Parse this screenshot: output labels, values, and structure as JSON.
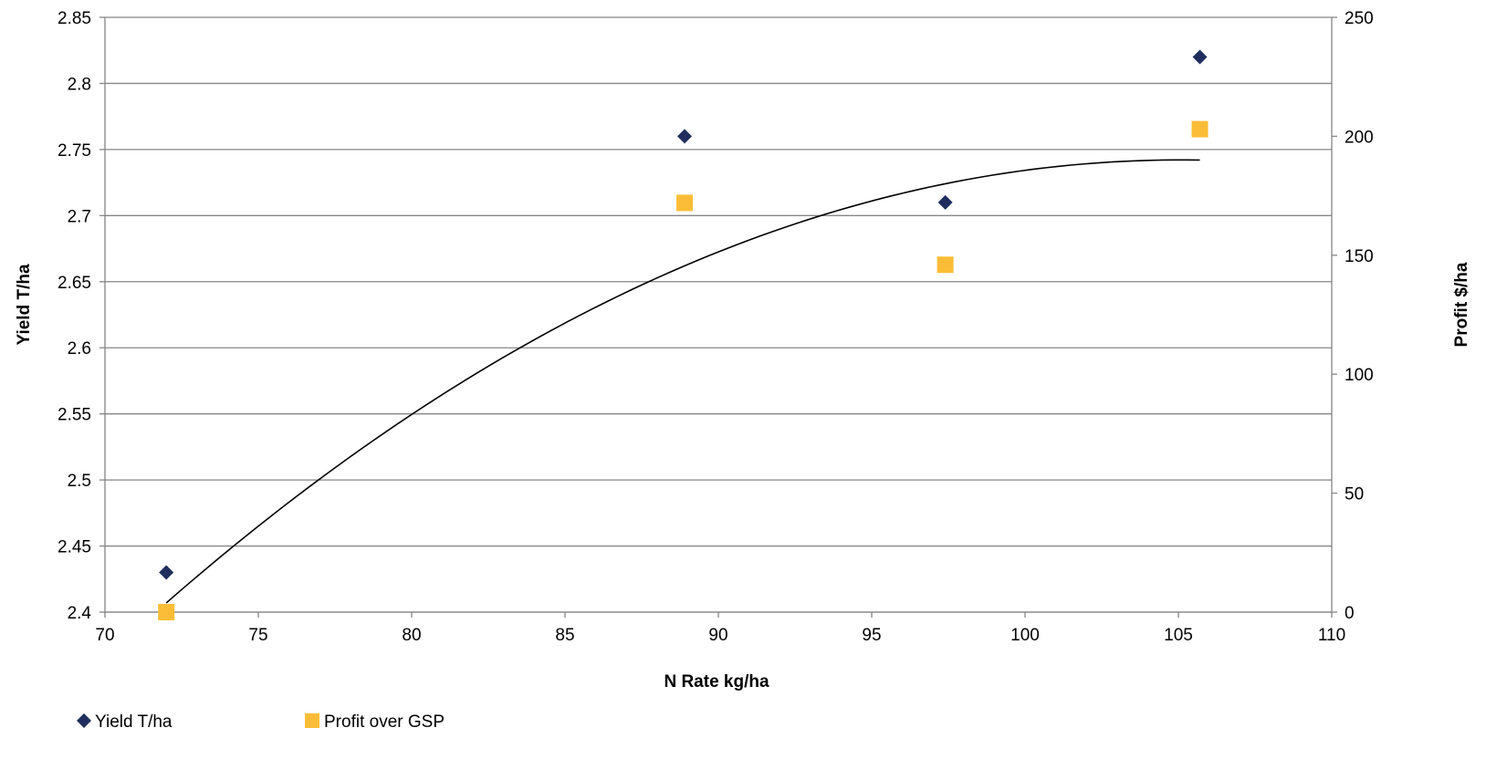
{
  "chart_data": {
    "type": "scatter",
    "x_axis": {
      "label": "N Rate kg/ha",
      "range": [
        70,
        110
      ],
      "ticks": [
        "70",
        "75",
        "80",
        "85",
        "90",
        "95",
        "100",
        "105",
        "110"
      ]
    },
    "y_axis_left": {
      "label": "Yield T/ha",
      "range": [
        2.4,
        2.85
      ],
      "ticks": [
        "2.4",
        "2.45",
        "2.5",
        "2.55",
        "2.6",
        "2.65",
        "2.7",
        "2.75",
        "2.8",
        "2.85"
      ]
    },
    "y_axis_right": {
      "label": "Profit $/ha",
      "range": [
        0,
        250
      ],
      "ticks": [
        "0",
        "50",
        "100",
        "150",
        "200",
        "250"
      ]
    },
    "grid": "horizontal",
    "legend_position": "bottom-left",
    "series": [
      {
        "name": "Yield T/ha",
        "axis": "left",
        "marker": "diamond",
        "color": "#1f2e5e",
        "points": [
          {
            "x": 72,
            "y": 2.43
          },
          {
            "x": 88.9,
            "y": 2.76
          },
          {
            "x": 97.4,
            "y": 2.71
          },
          {
            "x": 105.7,
            "y": 2.82
          }
        ]
      },
      {
        "name": "Profit over GSP",
        "axis": "right",
        "marker": "square",
        "color": "#fbbd37",
        "points": [
          {
            "x": 72,
            "y": 0
          },
          {
            "x": 88.9,
            "y": 172
          },
          {
            "x": 97.4,
            "y": 146
          },
          {
            "x": 105.7,
            "y": 203
          }
        ]
      }
    ],
    "trendline": {
      "type": "polynomial",
      "order": 2,
      "axis": "left",
      "color": "#000000",
      "x_range": [
        72,
        105.7
      ],
      "points": [
        {
          "x": 72,
          "y": 2.407
        },
        {
          "x": 88.9,
          "y": 2.662
        },
        {
          "x": 105.7,
          "y": 2.742
        }
      ]
    }
  }
}
